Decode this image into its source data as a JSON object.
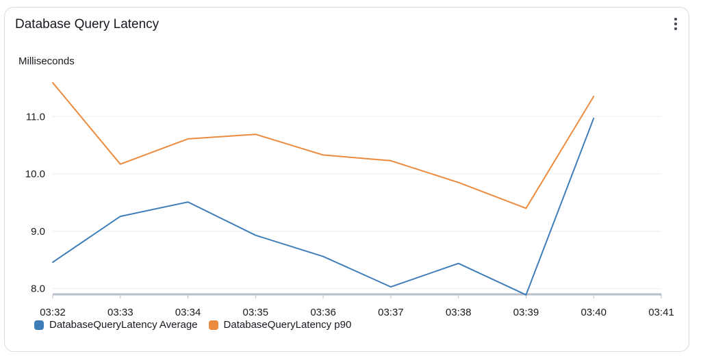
{
  "widget": {
    "title": "Database Query Latency"
  },
  "chart_data": {
    "type": "line",
    "title": "Database Query Latency",
    "ylabel": "Milliseconds",
    "xlabel": "",
    "x": [
      "03:32",
      "03:33",
      "03:34",
      "03:35",
      "03:36",
      "03:37",
      "03:38",
      "03:39",
      "03:40"
    ],
    "x_ticks": [
      "03:32",
      "03:33",
      "03:34",
      "03:35",
      "03:36",
      "03:37",
      "03:38",
      "03:39",
      "03:40",
      "03:41"
    ],
    "y_ticks": [
      "8.0",
      "9.0",
      "10.0",
      "11.0"
    ],
    "ylim": [
      7.9,
      11.6
    ],
    "grid": "horizontal",
    "legend_position": "bottom-left",
    "series": [
      {
        "name": "DatabaseQueryLatency Average",
        "color": "#3f7db9",
        "values": [
          8.46,
          9.26,
          9.51,
          8.93,
          8.56,
          8.03,
          8.44,
          7.89,
          10.97
        ]
      },
      {
        "name": "DatabaseQueryLatency p90",
        "color": "#ec8a3d",
        "values": [
          11.59,
          10.17,
          10.61,
          10.69,
          10.33,
          10.23,
          9.85,
          9.4,
          11.35
        ]
      }
    ]
  }
}
